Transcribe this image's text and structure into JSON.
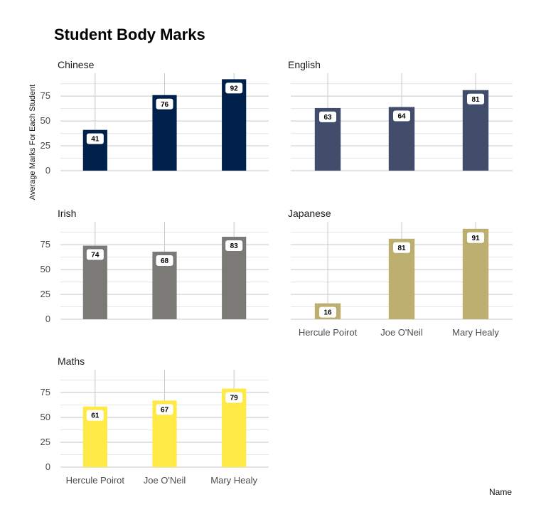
{
  "chart_data": {
    "type": "bar",
    "title": "Student Body Marks",
    "ylabel": "Average Marks For Each Student",
    "xlabel": "Name",
    "categories": [
      "Hercule Poirot",
      "Joe O'Neil",
      "Mary Healy"
    ],
    "yticks": [
      0,
      25,
      50,
      75
    ],
    "ylim": [
      0,
      98
    ],
    "facets": [
      {
        "name": "Chinese",
        "color": "#00204c",
        "values": [
          41,
          76,
          92
        ]
      },
      {
        "name": "English",
        "color": "#414d6b",
        "values": [
          63,
          64,
          81
        ]
      },
      {
        "name": "Irish",
        "color": "#7b7a77",
        "values": [
          74,
          68,
          83
        ]
      },
      {
        "name": "Japanese",
        "color": "#bcaf6f",
        "values": [
          16,
          81,
          91
        ]
      },
      {
        "name": "Maths",
        "color": "#ffe945",
        "values": [
          61,
          67,
          79
        ]
      }
    ]
  }
}
